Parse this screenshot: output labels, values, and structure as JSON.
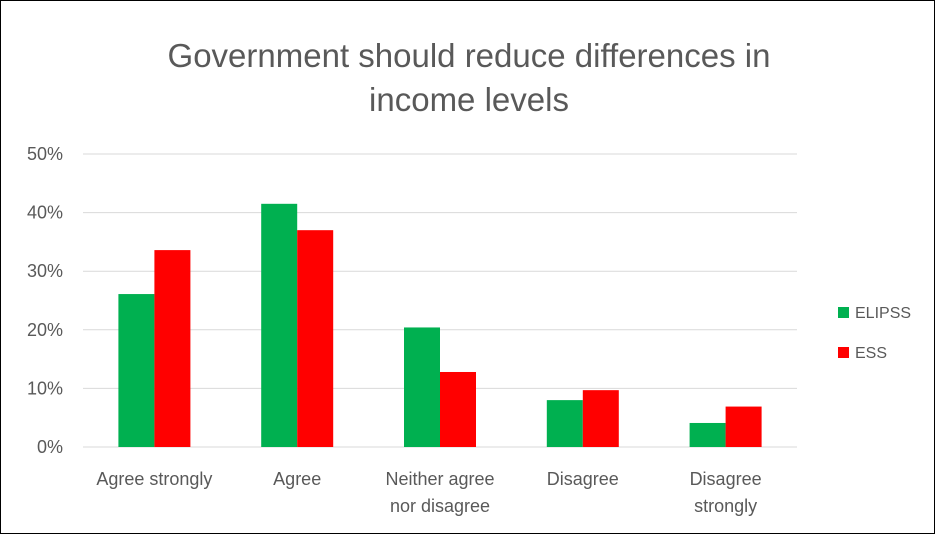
{
  "chart_data": {
    "type": "bar",
    "title": "Government should reduce differences in income levels",
    "title_lines": [
      "Government should reduce differences in",
      "income levels"
    ],
    "categories": [
      "Agree strongly",
      "Agree",
      "Neither agree nor disagree",
      "Disagree",
      "Disagree strongly"
    ],
    "category_label_lines": [
      [
        "Agree strongly"
      ],
      [
        "Agree"
      ],
      [
        "Neither agree",
        "nor disagree"
      ],
      [
        "Disagree"
      ],
      [
        "Disagree",
        "strongly"
      ]
    ],
    "series": [
      {
        "name": "ELIPSS",
        "color": "#00b050",
        "values": [
          26.1,
          41.5,
          20.4,
          8.0,
          4.1
        ]
      },
      {
        "name": "ESS",
        "color": "#ff0000",
        "values": [
          33.6,
          37.0,
          12.8,
          9.7,
          6.9
        ]
      }
    ],
    "ylim": [
      0,
      50
    ],
    "y_ticks": [
      "0%",
      "10%",
      "20%",
      "30%",
      "40%",
      "50%"
    ],
    "y_tick_values": [
      0,
      10,
      20,
      30,
      40,
      50
    ],
    "grid": true,
    "legend_position": "right",
    "xlabel": "",
    "ylabel": ""
  }
}
